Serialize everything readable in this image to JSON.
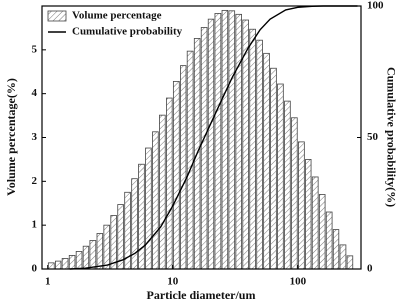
{
  "chart_data": {
    "type": "histogram",
    "x_label": "Particle diameter/um",
    "y_label": "Volume percentage(%)",
    "y2_label": "Cumulative probability(%)",
    "xscale": "log",
    "xlim": [
      0.9,
      320
    ],
    "xticks": [
      1,
      10,
      100
    ],
    "ylim": [
      0,
      6
    ],
    "yticks": [
      0,
      1,
      2,
      3,
      4,
      5
    ],
    "y2lim": [
      0,
      100
    ],
    "y2ticks": [
      0,
      50,
      100
    ],
    "legend": "top-left",
    "bins": [
      1,
      1.14,
      1.29,
      1.47,
      1.67,
      1.9,
      2.15,
      2.45,
      2.78,
      3.16,
      3.59,
      4.08,
      4.64,
      5.27,
      5.99,
      6.81,
      7.74,
      8.8,
      10,
      11.4,
      12.9,
      14.7,
      16.7,
      19,
      21.5,
      24.5,
      27.8,
      31.6,
      35.9,
      40.8,
      46.4,
      52.7,
      59.9,
      68.1,
      77.4,
      88,
      100,
      114,
      129,
      147,
      167,
      190,
      215,
      245,
      278
    ],
    "series": [
      {
        "name": "Volume percentage",
        "type": "histogram",
        "color": "#444444",
        "values": [
          0.14,
          0.18,
          0.24,
          0.31,
          0.4,
          0.52,
          0.65,
          0.81,
          1.0,
          1.22,
          1.47,
          1.75,
          2.06,
          2.39,
          2.76,
          3.13,
          3.51,
          3.9,
          4.28,
          4.64,
          4.97,
          5.26,
          5.51,
          5.7,
          5.83,
          5.9,
          5.89,
          5.81,
          5.68,
          5.47,
          5.22,
          4.92,
          4.58,
          4.22,
          3.83,
          3.45,
          2.9,
          2.5,
          2.1,
          1.7,
          1.3,
          0.9,
          0.55,
          0.3
        ]
      },
      {
        "name": "Cumulative probability",
        "type": "line",
        "axis": "y2",
        "color": "#000000",
        "x": [
          1.5,
          2,
          3,
          4,
          5,
          6,
          8,
          10,
          13,
          16,
          20,
          25,
          30,
          40,
          50,
          60,
          80,
          100,
          130,
          160,
          200,
          300
        ],
        "values": [
          0,
          0.3,
          1.5,
          3.5,
          6,
          9,
          16,
          24,
          35,
          45,
          55,
          65,
          73,
          84,
          91,
          95,
          98.5,
          99.5,
          99.9,
          100,
          100,
          100
        ]
      }
    ]
  }
}
